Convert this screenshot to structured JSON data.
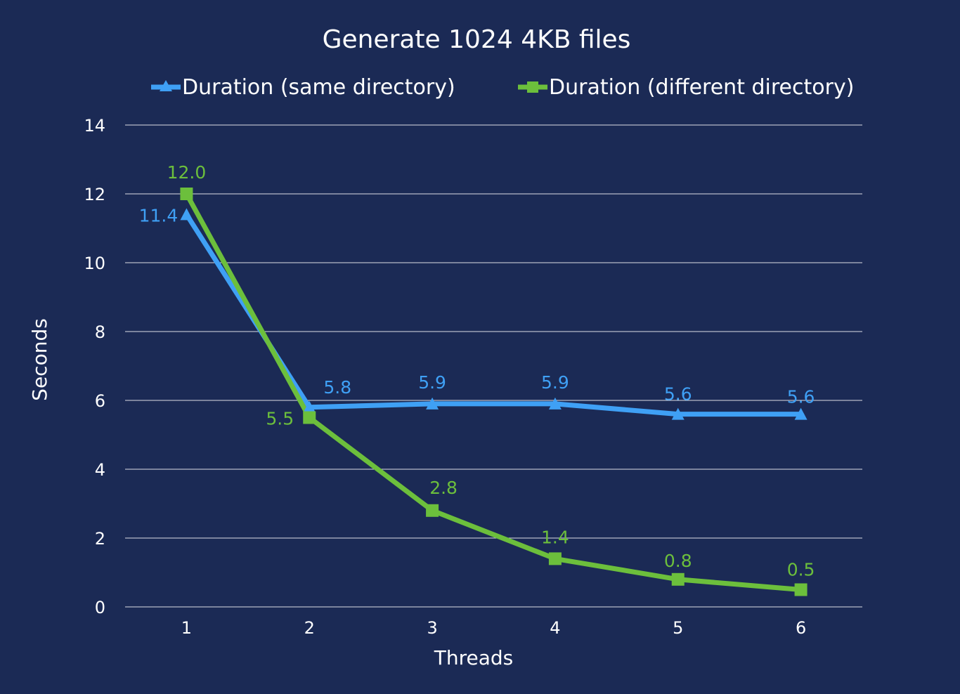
{
  "chart_data": {
    "type": "line",
    "title": "Generate 1024 4KB files",
    "xlabel": "Threads",
    "ylabel": "Seconds",
    "categories": [
      "1",
      "2",
      "3",
      "4",
      "5",
      "6"
    ],
    "ylim": [
      0,
      14
    ],
    "yticks": [
      "0",
      "2",
      "4",
      "6",
      "8",
      "10",
      "12",
      "14"
    ],
    "grid": true,
    "legend_position": "top",
    "series": [
      {
        "name": "Duration (same directory)",
        "values": [
          11.4,
          5.8,
          5.9,
          5.9,
          5.6,
          5.6
        ],
        "labels": [
          "11.4",
          "5.8",
          "5.9",
          "5.9",
          "5.6",
          "5.6"
        ],
        "color": "#3fa0f5",
        "marker": "triangle"
      },
      {
        "name": "Duration (different directory)",
        "values": [
          12.0,
          5.5,
          2.8,
          1.4,
          0.8,
          0.5
        ],
        "labels": [
          "12.0",
          "5.5",
          "2.8",
          "1.4",
          "0.8",
          "0.5"
        ],
        "color": "#6cbf3c",
        "marker": "square"
      }
    ]
  }
}
